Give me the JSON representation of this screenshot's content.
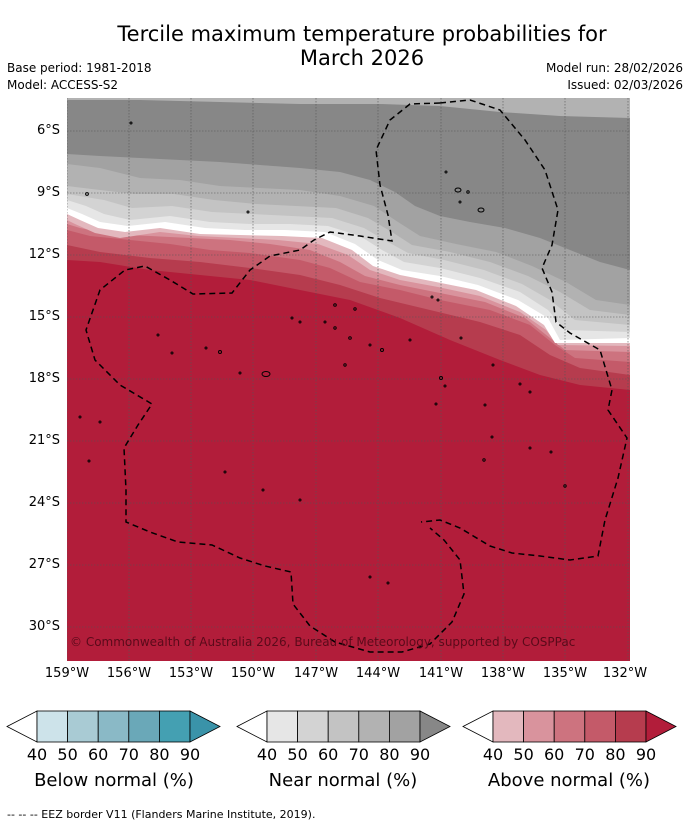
{
  "title_line1": "Tercile maximum temperature probabilities for",
  "title_line2": "March 2026",
  "base_period": "Base period: 1981-2018",
  "model": "Model: ACCESS-S2",
  "model_run": "Model run: 28/02/2026",
  "issued": "Issued: 02/03/2026",
  "copyright": "© Commonwealth of Australia 2026, Bureau of Meteorology, supported by COSPPac",
  "longitude_labels": [
    "159°W",
    "156°W",
    "153°W",
    "150°W",
    "147°W",
    "144°W",
    "141°W",
    "138°W",
    "135°W",
    "132°W"
  ],
  "latitude_labels": [
    "6°S",
    "9°S",
    "12°S",
    "15°S",
    "18°S",
    "21°S",
    "24°S",
    "27°S",
    "30°S"
  ],
  "colorbars": [
    {
      "label": "Below normal (%)",
      "ticks": [
        "40",
        "50",
        "60",
        "70",
        "80",
        "90"
      ],
      "colors": [
        "#ffffff",
        "#cde3ea",
        "#a9cbd4",
        "#8ab9c6",
        "#6aa8b8",
        "#44a0b2",
        "#3a93a9"
      ]
    },
    {
      "label": "Near normal (%)",
      "ticks": [
        "40",
        "50",
        "60",
        "70",
        "80",
        "90"
      ],
      "colors": [
        "#ffffff",
        "#e6e6e6",
        "#d3d3d3",
        "#c3c3c3",
        "#b2b2b2",
        "#a2a2a2",
        "#878787"
      ]
    },
    {
      "label": "Above normal (%)",
      "ticks": [
        "40",
        "50",
        "60",
        "70",
        "80",
        "90"
      ],
      "colors": [
        "#ffffff",
        "#e3b8be",
        "#d9939d",
        "#cd737f",
        "#c45a69",
        "#b63c4e",
        "#b21d3a"
      ]
    }
  ],
  "footer": "--  --  -- EEZ border V11 (Flanders Marine Institute, 2019).",
  "palette": {
    "above_90": "#b21d3a",
    "near_90": "#878787",
    "eez_line": "#000000"
  }
}
